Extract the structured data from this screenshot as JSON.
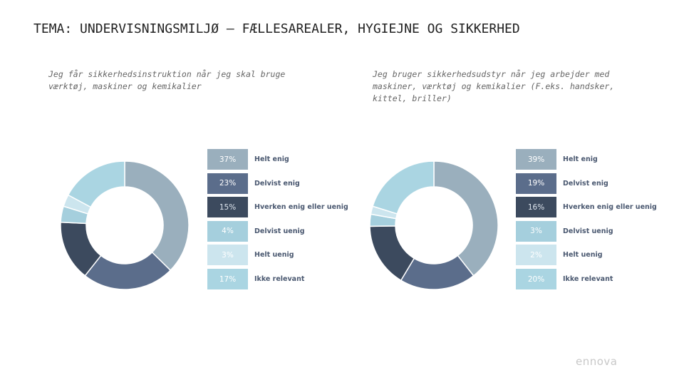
{
  "page": {
    "title": "TEMA: UNDERVISNINGSMILJØ – FÆLLESAREALER, HYGIEJNE OG SIKKERHED"
  },
  "logo": "ennova",
  "chart_data": [
    {
      "type": "pie",
      "donut": true,
      "title": "Jeg får sikkerhedsinstruktion når jeg skal bruge værktøj, maskiner og kemikalier",
      "categories": [
        "Helt enig",
        "Delvist enig",
        "Hverken enig eller uenig",
        "Delvist uenig",
        "Helt uenig",
        "Ikke relevant"
      ],
      "values": [
        37,
        23,
        15,
        4,
        3,
        17
      ],
      "value_labels": [
        "37%",
        "23%",
        "15%",
        "4%",
        "3%",
        "17%"
      ],
      "colors": [
        "#9aafbd",
        "#5b6d8b",
        "#3c4a5e",
        "#a5cfdd",
        "#cce5ee",
        "#aad5e2"
      ],
      "label_colors": [
        "#ffffff",
        "#ffffff",
        "#dfe6ee",
        "#ffffff",
        "#ffffff",
        "#ffffff"
      ],
      "legend": "right"
    },
    {
      "type": "pie",
      "donut": true,
      "title": "Jeg bruger sikkerhedsudstyr når jeg arbejder med maskiner, værktøj og kemikalier (F.eks. handsker, kittel, briller)",
      "categories": [
        "Helt enig",
        "Delvist enig",
        "Hverken enig eller uenig",
        "Delvist uenig",
        "Helt uenig",
        "Ikke relevant"
      ],
      "values": [
        39,
        19,
        16,
        3,
        2,
        20
      ],
      "value_labels": [
        "39%",
        "19%",
        "16%",
        "3%",
        "2%",
        "20%"
      ],
      "colors": [
        "#9aafbd",
        "#5b6d8b",
        "#3c4a5e",
        "#a5cfdd",
        "#cce5ee",
        "#aad5e2"
      ],
      "label_colors": [
        "#ffffff",
        "#ffffff",
        "#dfe6ee",
        "#ffffff",
        "#ffffff",
        "#ffffff"
      ],
      "legend": "right"
    }
  ]
}
